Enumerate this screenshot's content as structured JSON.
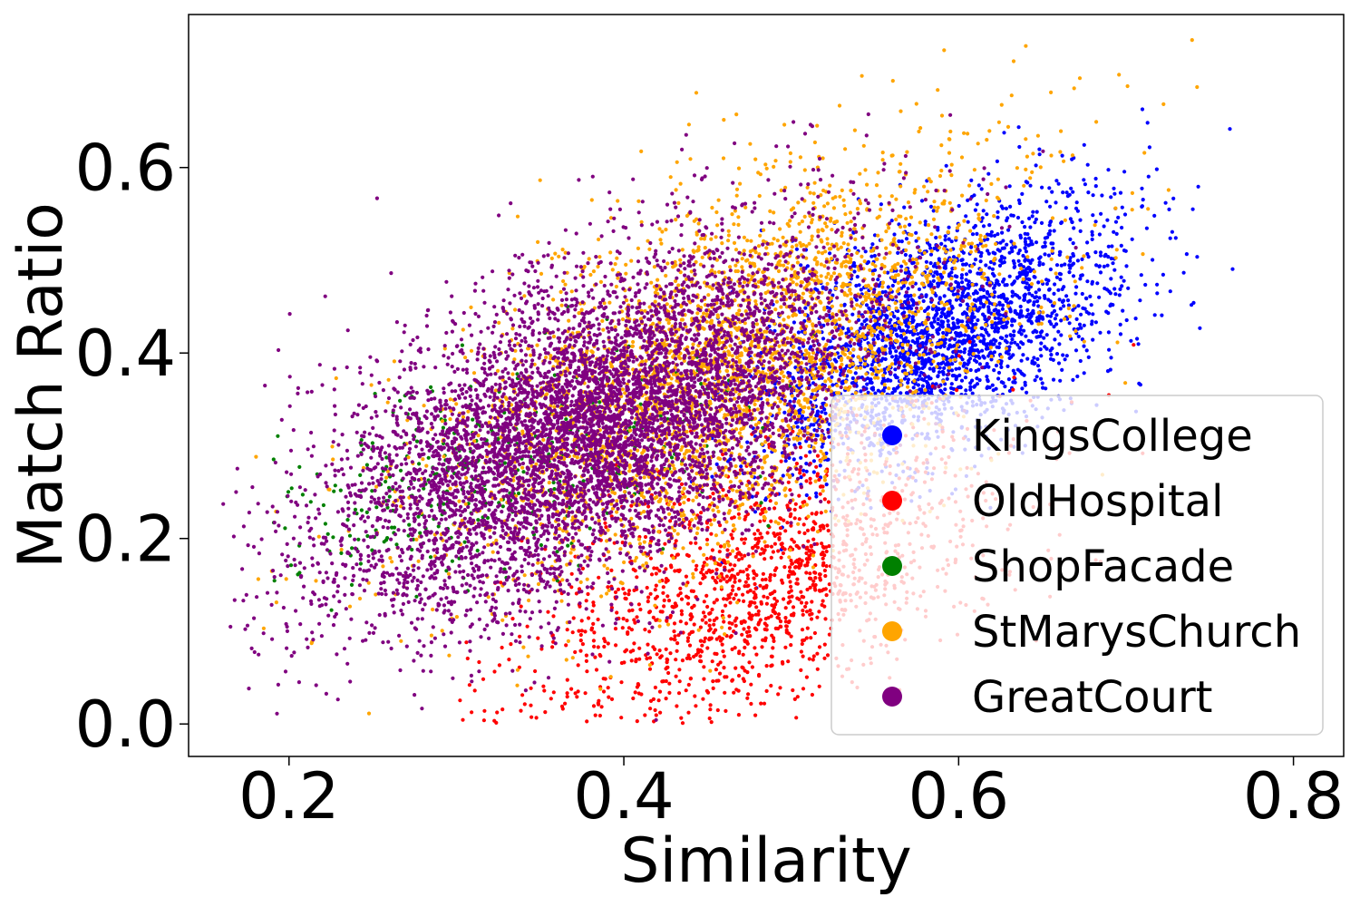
{
  "chart_data": {
    "type": "scatter",
    "title": "",
    "xlabel": "Similarity",
    "ylabel": "Match Ratio",
    "xlim": [
      0.14,
      0.83
    ],
    "ylim": [
      -0.035,
      0.765
    ],
    "xticks": [
      0.2,
      0.4,
      0.6,
      0.8
    ],
    "yticks": [
      0.0,
      0.2,
      0.4,
      0.6
    ],
    "xtick_labels": [
      "0.2",
      "0.4",
      "0.6",
      "0.8"
    ],
    "ytick_labels": [
      "0.0",
      "0.2",
      "0.4",
      "0.6"
    ],
    "grid": false,
    "legend_position": "lower-right",
    "series": [
      {
        "name": "KingsCollege",
        "color": "#0000ff",
        "points_approx": 2500,
        "distribution": {
          "x_center": 0.59,
          "y_center": 0.42,
          "x_spread": 0.055,
          "y_spread": 0.075,
          "x_range": [
            0.44,
            0.78
          ],
          "y_range": [
            0.12,
            0.67
          ]
        }
      },
      {
        "name": "OldHospital",
        "color": "#ff0000",
        "points_approx": 1600,
        "distribution": {
          "x_center": 0.48,
          "y_center": 0.15,
          "x_spread": 0.07,
          "y_spread": 0.085,
          "x_range": [
            0.3,
            0.71
          ],
          "y_range": [
            0.0,
            0.42
          ]
        }
      },
      {
        "name": "ShopFacade",
        "color": "#008000",
        "points_approx": 400,
        "distribution": {
          "x_center": 0.32,
          "y_center": 0.27,
          "x_spread": 0.07,
          "y_spread": 0.06,
          "x_range": [
            0.19,
            0.78
          ],
          "y_range": [
            0.1,
            0.6
          ]
        }
      },
      {
        "name": "StMarysChurch",
        "color": "#ffa500",
        "points_approx": 3200,
        "distribution": {
          "x_center": 0.46,
          "y_center": 0.38,
          "x_spread": 0.085,
          "y_spread": 0.11,
          "x_range": [
            0.16,
            0.8
          ],
          "y_range": [
            0.0,
            0.74
          ]
        }
      },
      {
        "name": "GreatCourt",
        "color": "#800080",
        "points_approx": 6500,
        "distribution": {
          "x_center": 0.38,
          "y_center": 0.32,
          "x_spread": 0.08,
          "y_spread": 0.1,
          "x_range": [
            0.16,
            0.8
          ],
          "y_range": [
            0.0,
            0.67
          ]
        }
      }
    ]
  }
}
